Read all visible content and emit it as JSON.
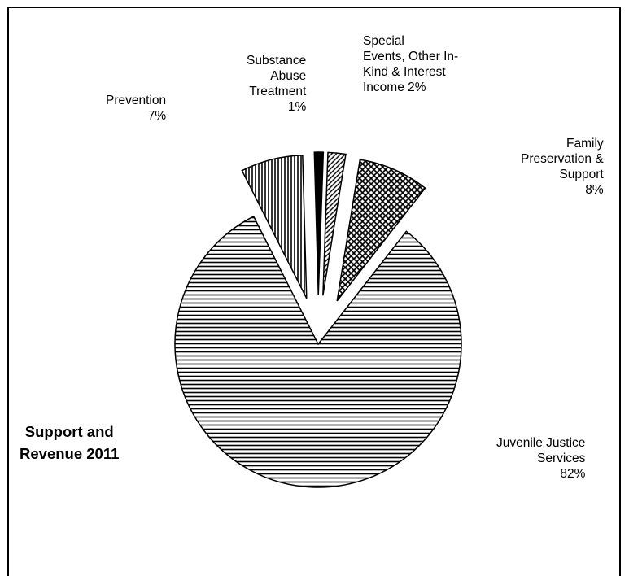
{
  "chart_data": {
    "type": "pie",
    "title_lines": [
      "Support and",
      "Revenue 2011"
    ],
    "slices": [
      {
        "label_lines": [
          "Juvenile Justice",
          "Services",
          "82%"
        ],
        "value": 82,
        "pattern": "horizontal-lines"
      },
      {
        "label_lines": [
          "Prevention",
          "7%"
        ],
        "value": 7,
        "pattern": "vertical-lines"
      },
      {
        "label_lines": [
          "Substance",
          "Abuse",
          "Treatment",
          "1%"
        ],
        "value": 1,
        "pattern": "solid-black"
      },
      {
        "label_lines": [
          "Special",
          "Events, Other In-",
          "Kind & Interest",
          "Income 2%"
        ],
        "value": 2,
        "pattern": "diagonal-lines"
      },
      {
        "label_lines": [
          "Family",
          "Preservation &",
          "Support",
          "8%"
        ],
        "value": 8,
        "pattern": "cross-hatch"
      }
    ]
  }
}
